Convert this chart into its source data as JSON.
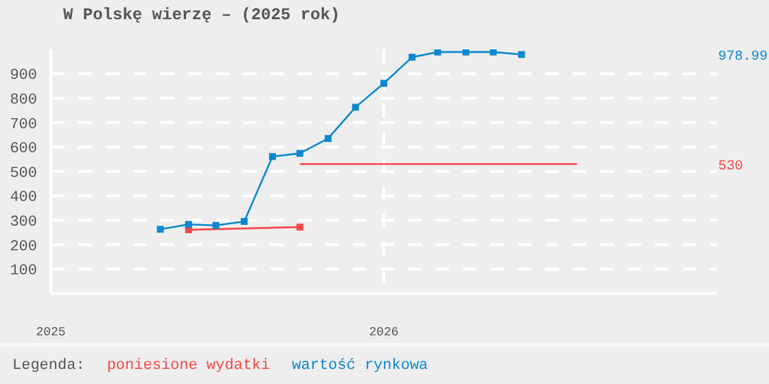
{
  "chart_data": {
    "type": "line",
    "title": "W Polskę wierzę – (2025 rok)",
    "legend_title": "Legenda:",
    "legend": "bottom",
    "grid": true,
    "marker": "square",
    "xlim": [
      "2025",
      "2027"
    ],
    "xticks": [
      "2025",
      "2026"
    ],
    "ylim": [
      0,
      1000
    ],
    "yticks": [
      100,
      200,
      300,
      400,
      500,
      600,
      700,
      800,
      900
    ],
    "series": [
      {
        "name": "poniesione wydatki",
        "color": "#f44848",
        "x": [
          "2025-06",
          "2025-10"
        ],
        "values": [
          261,
          272
        ]
      },
      {
        "color": "#f44848",
        "marker": "none",
        "x": [
          "2025-10",
          "2026-08"
        ],
        "values": [
          530,
          530
        ]
      },
      {
        "name": "wartość rynkowa",
        "color": "#0a88d0",
        "x": [
          "2025-05",
          "2025-06",
          "2025-07",
          "2025-08",
          "2025-09",
          "2025-10",
          "2025-11",
          "2025-12",
          "2026-01",
          "2026-02",
          "2026-03",
          "2026-04",
          "2026-05",
          "2026-06"
        ],
        "values": [
          263,
          283,
          279,
          295,
          561,
          574,
          635,
          763,
          861,
          968,
          989,
          989,
          989,
          978.99
        ]
      }
    ],
    "annotations": [
      "978.99",
      "530"
    ]
  }
}
